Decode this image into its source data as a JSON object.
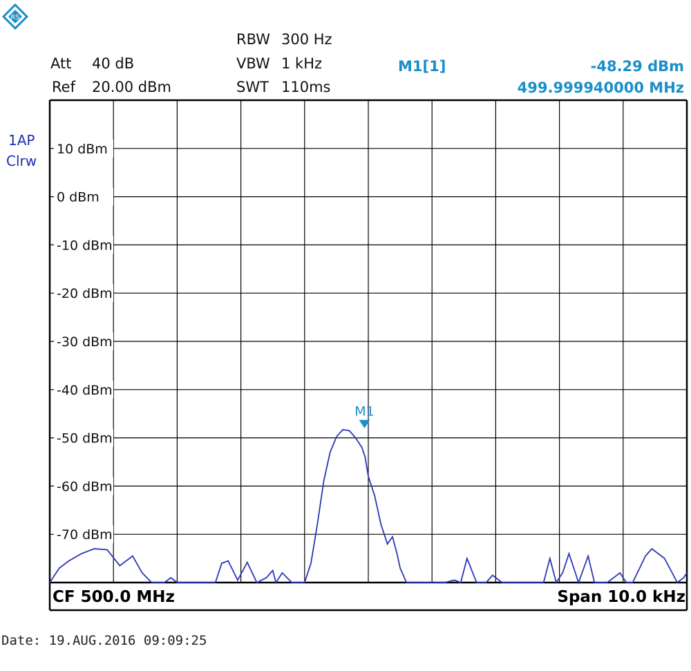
{
  "settings": {
    "att_label": "Att",
    "att_value": "40 dB",
    "ref_label": "Ref",
    "ref_value": "20.00 dBm",
    "rbw_label": "RBW",
    "rbw_value": "300 Hz",
    "vbw_label": "VBW",
    "vbw_value": "1 kHz",
    "swt_label": "SWT",
    "swt_value": "110ms"
  },
  "marker": {
    "name": "M1[1]",
    "level": "-48.29 dBm",
    "frequency": "499.999940000 MHz",
    "plot_label": "M1"
  },
  "trace": {
    "line1": "1AP",
    "line2": "Clrw"
  },
  "footer": {
    "cf": "CF 500.0 MHz",
    "span": "Span 10.0 kHz"
  },
  "date": {
    "text": "Date:  19.AUG.2016  09:09:25"
  },
  "colors": {
    "trace": "#2a36b8",
    "marker": "#1a8fc8",
    "grid": "#000000"
  },
  "icons": {
    "logo": "rohde-schwarz-logo-icon"
  },
  "chart_data": {
    "type": "line",
    "xlabel": "",
    "ylabel": "",
    "xlim": [
      -5.0,
      5.0
    ],
    "ylim": [
      -80,
      20
    ],
    "ytick_labels": [
      "10 dBm",
      "0 dBm",
      "-10 dBm",
      "-20 dBm",
      "-30 dBm",
      "-40 dBm",
      "-50 dBm",
      "-60 dBm",
      "-70 dBm"
    ],
    "ytick_values": [
      10,
      0,
      -10,
      -20,
      -30,
      -40,
      -50,
      -60,
      -70
    ],
    "grid": true,
    "marker_point": {
      "x": -0.06,
      "y": -48.29
    },
    "series": [
      {
        "x": [
          -5.0,
          -4.85,
          -4.7,
          -4.5,
          -4.3,
          -4.1,
          -3.9,
          -3.7,
          -3.55,
          -3.4,
          -3.3,
          -3.2,
          -3.1,
          -3.0,
          -2.8,
          -2.6,
          -2.4,
          -2.3,
          -2.2,
          -2.05,
          -1.9,
          -1.75,
          -1.6,
          -1.5,
          -1.45,
          -1.35,
          -1.2,
          -1.0,
          -0.9,
          -0.8,
          -0.7,
          -0.6,
          -0.5,
          -0.4,
          -0.3,
          -0.2,
          -0.1,
          -0.05,
          0.0,
          0.1,
          0.2,
          0.3,
          0.38,
          0.45,
          0.5,
          0.6,
          0.7,
          0.9,
          1.2,
          1.35,
          1.45,
          1.55,
          1.7,
          1.85,
          1.95,
          2.1,
          2.4,
          2.75,
          2.85,
          2.95,
          3.05,
          3.15,
          3.3,
          3.45,
          3.55,
          3.75,
          3.95,
          4.05,
          4.15,
          4.35,
          4.45,
          4.65,
          4.75,
          4.85,
          4.95,
          5.0
        ],
        "y": [
          -80,
          -77,
          -75.5,
          -74,
          -73,
          -73.2,
          -76.5,
          -74.5,
          -78,
          -80,
          -80,
          -80,
          -79,
          -80,
          -80,
          -80,
          -80,
          -76,
          -75.5,
          -79.5,
          -75.8,
          -80,
          -79,
          -77.5,
          -80,
          -78,
          -80,
          -80,
          -76,
          -68,
          -59,
          -53,
          -49.8,
          -48.3,
          -48.5,
          -50,
          -52,
          -54,
          -58,
          -62,
          -68,
          -72,
          -70.5,
          -74,
          -77,
          -80,
          -80,
          -80,
          -80,
          -79.5,
          -80,
          -75,
          -80,
          -80,
          -78.5,
          -80,
          -80,
          -80,
          -75,
          -80,
          -78,
          -74,
          -80,
          -74.5,
          -80,
          -80,
          -78,
          -80,
          -80,
          -74.5,
          -73,
          -75,
          -77.5,
          -80,
          -79,
          -78
        ]
      }
    ]
  }
}
